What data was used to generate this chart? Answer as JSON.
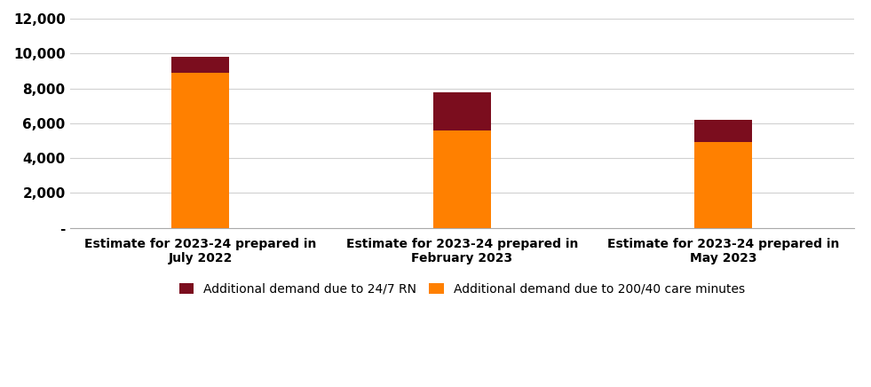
{
  "categories": [
    "Estimate for 2023-24 prepared in\nJuly 2022",
    "Estimate for 2023-24 prepared in\nFebruary 2023",
    "Estimate for 2023-24 prepared in\nMay 2023"
  ],
  "orange_values": [
    8900,
    5600,
    4900
  ],
  "darkred_values": [
    913,
    2178,
    1300
  ],
  "orange_color": "#FF8000",
  "darkred_color": "#7B0D1E",
  "legend_labels": [
    "Additional demand due to 24/7 RN",
    "Additional demand due to 200/40 care minutes"
  ],
  "ylim": [
    0,
    12000
  ],
  "yticks": [
    0,
    2000,
    4000,
    6000,
    8000,
    10000,
    12000
  ],
  "ytick_labels": [
    "-",
    "2,000",
    "4,000",
    "6,000",
    "8,000",
    "10,000",
    "12,000"
  ],
  "background_color": "#ffffff",
  "grid_color": "#d0d0d0",
  "bar_width": 0.22,
  "figsize": [
    9.81,
    4.36
  ],
  "dpi": 100
}
